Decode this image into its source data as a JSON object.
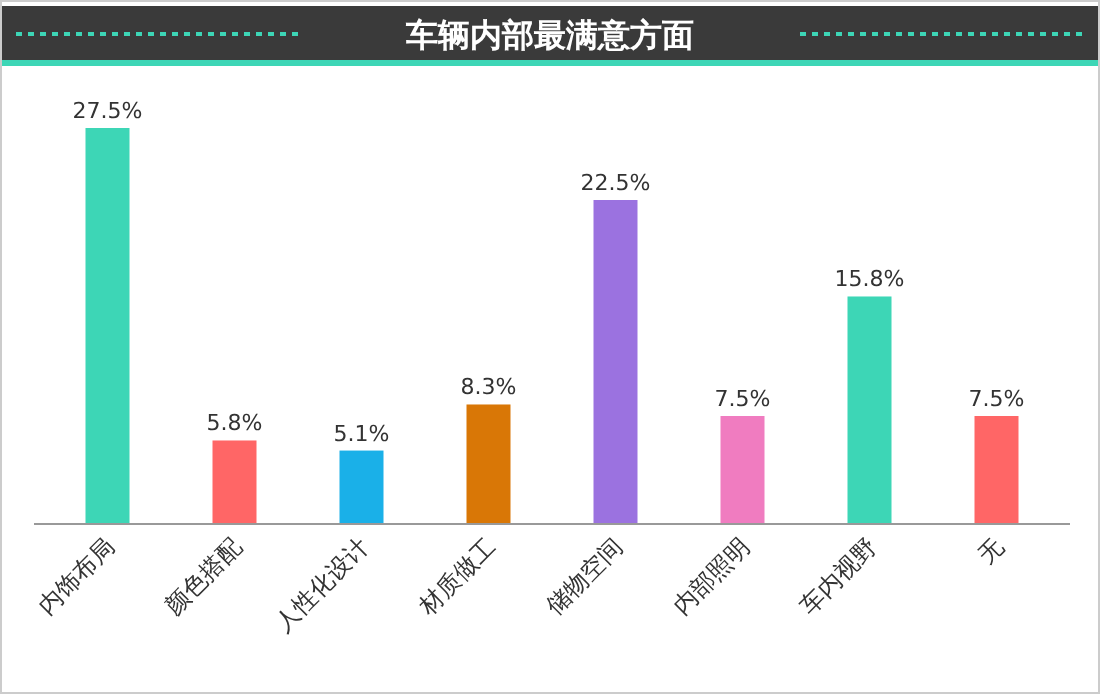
{
  "chart_data": {
    "type": "bar",
    "title": "车辆内部最满意方面",
    "categories": [
      "内饰布局",
      "颜色搭配",
      "人性化设计",
      "材质做工",
      "储物空间",
      "内部照明",
      "车内视野",
      "无"
    ],
    "values": [
      27.5,
      5.8,
      5.1,
      8.3,
      22.5,
      7.5,
      15.8,
      7.5
    ],
    "colors": [
      "#3dd6b6",
      "#ff6666",
      "#1ab0e8",
      "#d97706",
      "#9b72e0",
      "#f07cc0",
      "#3dd6b6",
      "#ff6666"
    ],
    "value_labels": [
      "27.5%",
      "5.8%",
      "5.1%",
      "8.3%",
      "22.5%",
      "7.5%",
      "15.8%",
      "7.5%"
    ]
  }
}
